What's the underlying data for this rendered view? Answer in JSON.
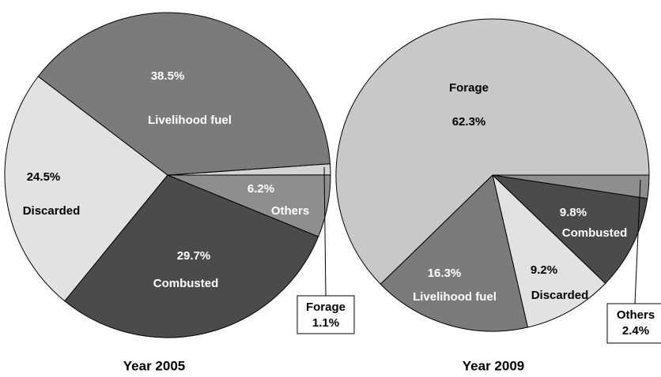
{
  "chart_data": [
    {
      "type": "pie",
      "title": "Year 2005",
      "categories": [
        "Forage",
        "Others",
        "Combusted",
        "Discarded",
        "Livelihood fuel"
      ],
      "values": [
        1.1,
        6.2,
        29.7,
        24.5,
        38.5
      ],
      "value_labels": [
        "1.1%",
        "6.2%",
        "29.7%",
        "24.5%",
        "38.5%"
      ],
      "colors": [
        "#d4d4d4",
        "#8e8e8e",
        "#4b4b4b",
        "#e2e2e2",
        "#7b7b7b"
      ]
    },
    {
      "type": "pie",
      "title": "Year 2009",
      "categories": [
        "Others",
        "Combusted",
        "Discarded",
        "Livelihood fuel",
        "Forage"
      ],
      "values": [
        2.4,
        9.8,
        9.2,
        16.3,
        62.3
      ],
      "value_labels": [
        "2.4%",
        "9.8%",
        "9.2%",
        "16.3%",
        "62.3%"
      ],
      "colors": [
        "#8e8e8e",
        "#4b4b4b",
        "#e2e2e2",
        "#7b7b7b",
        "#c8c8c8"
      ]
    }
  ]
}
